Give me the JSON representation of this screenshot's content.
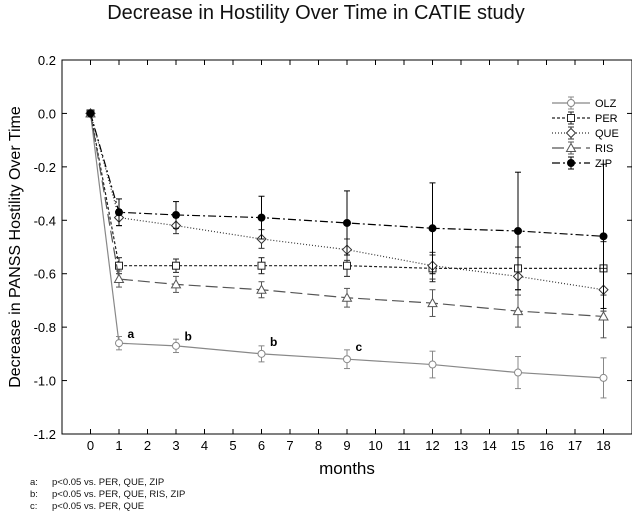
{
  "chart_data": {
    "type": "line",
    "title": "Decrease in Hostility Over Time in CATIE study",
    "xlabel": "months",
    "ylabel": "Decrease in PANSS Hostility Over Time",
    "xlim": [
      -1,
      19
    ],
    "ylim": [
      -1.2,
      0.2
    ],
    "xticks": [
      0,
      1,
      2,
      3,
      4,
      5,
      6,
      7,
      8,
      9,
      10,
      11,
      12,
      13,
      14,
      15,
      16,
      17,
      18
    ],
    "yticks": [
      -1.2,
      -1.0,
      -0.8,
      -0.6,
      -0.4,
      -0.2,
      0.0,
      0.2
    ],
    "ytick_labels": [
      "-1.2",
      "-1.0",
      "-0.8",
      "-0.6",
      "-0.4",
      "-0.2",
      "0.0",
      "0.2"
    ],
    "grid": false,
    "legend_position": "top-right",
    "series": [
      {
        "name": "OLZ",
        "marker": "circle-open",
        "dash": "solid",
        "color": "#888888",
        "x": [
          0,
          1,
          3,
          6,
          9,
          12,
          15,
          18
        ],
        "y": [
          0,
          -0.86,
          -0.87,
          -0.9,
          -0.92,
          -0.94,
          -0.97,
          -0.99
        ],
        "err": [
          0,
          0.025,
          0.025,
          0.03,
          0.035,
          0.05,
          0.06,
          0.075
        ]
      },
      {
        "name": "PER",
        "marker": "square-open",
        "dash": "short-dash",
        "color": "#222222",
        "x": [
          0,
          1,
          3,
          6,
          9,
          12,
          15,
          18
        ],
        "y": [
          0,
          -0.57,
          -0.57,
          -0.57,
          -0.57,
          -0.58,
          -0.58,
          -0.58
        ],
        "err": [
          0,
          0.03,
          0.025,
          0.03,
          0.04,
          0.05,
          0.08,
          0.1
        ]
      },
      {
        "name": "QUE",
        "marker": "diamond-open",
        "dash": "dotted",
        "color": "#333333",
        "x": [
          0,
          1,
          3,
          6,
          9,
          12,
          15,
          18
        ],
        "y": [
          0,
          -0.39,
          -0.42,
          -0.47,
          -0.51,
          -0.57,
          -0.61,
          -0.66
        ],
        "err": [
          0,
          0.03,
          0.03,
          0.035,
          0.04,
          0.05,
          0.07,
          0.08
        ]
      },
      {
        "name": "RIS",
        "marker": "triangle-open",
        "dash": "long-dash",
        "color": "#555555",
        "x": [
          0,
          1,
          3,
          6,
          9,
          12,
          15,
          18
        ],
        "y": [
          0,
          -0.62,
          -0.64,
          -0.66,
          -0.69,
          -0.71,
          -0.74,
          -0.76
        ],
        "err": [
          0,
          0.03,
          0.03,
          0.03,
          0.035,
          0.05,
          0.06,
          0.08
        ]
      },
      {
        "name": "ZIP",
        "marker": "circle-filled",
        "dash": "dash-dot",
        "color": "#000000",
        "x": [
          0,
          1,
          3,
          6,
          9,
          12,
          15,
          18
        ],
        "y": [
          0,
          -0.37,
          -0.38,
          -0.39,
          -0.41,
          -0.43,
          -0.44,
          -0.46
        ],
        "err": [
          0,
          0.05,
          0.05,
          0.08,
          0.12,
          0.17,
          0.22,
          0.27
        ]
      }
    ],
    "annotations": [
      {
        "text": "a",
        "x": 1.3,
        "y": -0.84
      },
      {
        "text": "b",
        "x": 3.3,
        "y": -0.85
      },
      {
        "text": "b",
        "x": 6.3,
        "y": -0.87
      },
      {
        "text": "c",
        "x": 9.3,
        "y": -0.89
      }
    ]
  },
  "footnotes": [
    {
      "key": "a:",
      "text": "p<0.05 vs. PER, QUE, ZIP"
    },
    {
      "key": "b:",
      "text": "p<0.05 vs. PER, QUE, RIS, ZIP"
    },
    {
      "key": "c:",
      "text": "p<0.05 vs. PER, QUE"
    }
  ]
}
